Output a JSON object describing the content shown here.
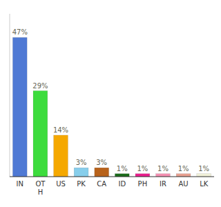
{
  "chart_data": {
    "type": "bar",
    "categories": [
      "IN",
      "OT\nH",
      "US",
      "PK",
      "CA",
      "ID",
      "PH",
      "IR",
      "AU",
      "LK"
    ],
    "values": [
      47,
      29,
      14,
      3,
      3,
      1,
      1,
      1,
      1,
      1
    ],
    "value_labels": [
      "47%",
      "29%",
      "14%",
      "3%",
      "3%",
      "1%",
      "1%",
      "1%",
      "1%",
      "1%"
    ],
    "colors": [
      "#4f79d4",
      "#3ddc3d",
      "#f5a800",
      "#87ceeb",
      "#b8621a",
      "#1a6b1a",
      "#e91e8c",
      "#f48fb1",
      "#e8a090",
      "#f0f0d8"
    ],
    "ylim": [
      0,
      55
    ],
    "data_labels": true,
    "tick_labels": "x",
    "grid": false
  }
}
